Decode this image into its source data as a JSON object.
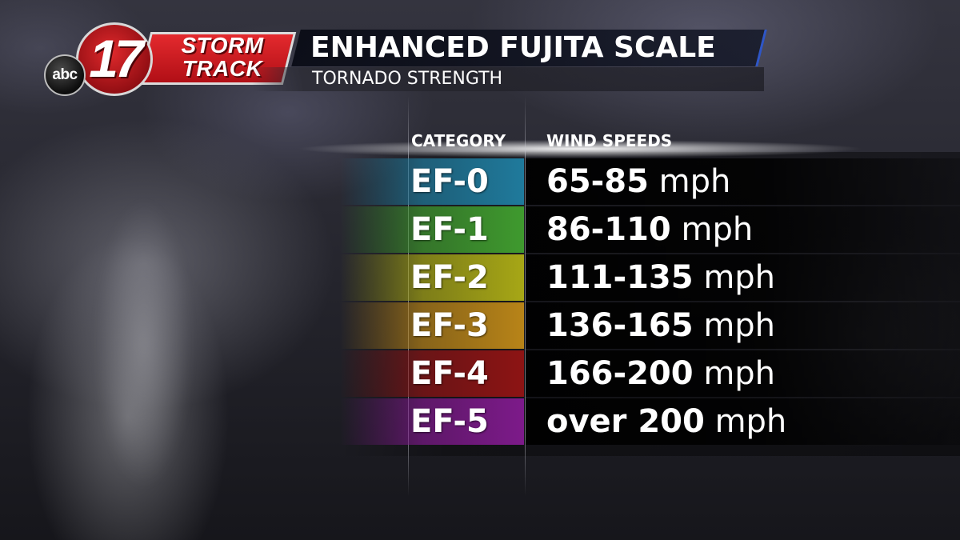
{
  "logo": {
    "network": "abc",
    "channel": "17",
    "brand_line1": "STORM",
    "brand_line2": "TRACK"
  },
  "header": {
    "title": "ENHANCED FUJITA SCALE",
    "subtitle": "TORNADO STRENGTH"
  },
  "table": {
    "col_category": "CATEGORY",
    "col_wind": "WIND SPEEDS",
    "rows": [
      {
        "category": "EF-0",
        "range": "65-85",
        "unit": "mph",
        "color": "#1f7a9c"
      },
      {
        "category": "EF-1",
        "range": "86-110",
        "unit": "mph",
        "color": "#3f9a2e"
      },
      {
        "category": "EF-2",
        "range": "111-135",
        "unit": "mph",
        "color": "#a7a716"
      },
      {
        "category": "EF-3",
        "range": "136-165",
        "unit": "mph",
        "color": "#b88418"
      },
      {
        "category": "EF-4",
        "range": "166-200",
        "unit": "mph",
        "color": "#8d1414"
      },
      {
        "category": "EF-5",
        "range": "over 200",
        "unit": "mph",
        "color": "#7d1a8a"
      }
    ]
  }
}
